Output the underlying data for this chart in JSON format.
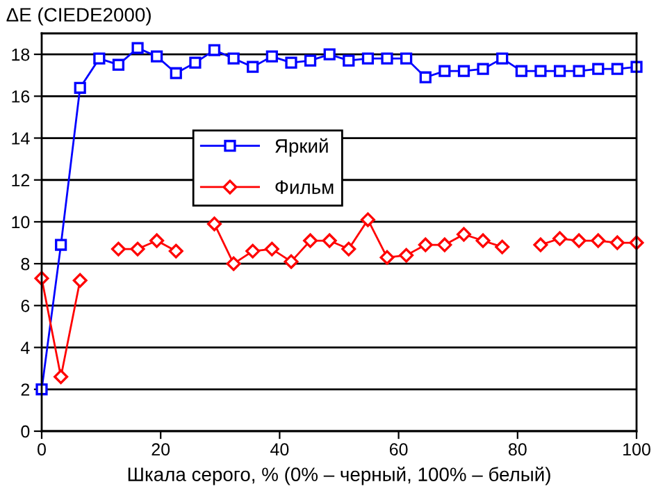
{
  "chart_data": {
    "type": "line",
    "ylabel": "ΔE (CIEDE2000)",
    "xlabel": "Шкала серого, % (0% – черный, 100% – белый)",
    "x": [
      0,
      3.23,
      6.45,
      9.68,
      12.9,
      16.13,
      19.35,
      22.58,
      25.81,
      29.03,
      32.26,
      35.48,
      38.71,
      41.94,
      45.16,
      48.39,
      51.61,
      54.84,
      58.06,
      61.29,
      64.52,
      67.74,
      70.97,
      74.19,
      77.42,
      80.65,
      83.87,
      87.1,
      90.32,
      93.55,
      96.77,
      100
    ],
    "series": [
      {
        "name": "Яркий",
        "color": "#0000ff",
        "marker": "square",
        "values": [
          2.0,
          8.9,
          16.4,
          17.8,
          17.5,
          18.3,
          17.9,
          17.1,
          17.6,
          18.2,
          17.8,
          17.4,
          17.9,
          17.6,
          17.7,
          18.0,
          17.7,
          17.8,
          17.8,
          17.8,
          16.9,
          17.2,
          17.2,
          17.3,
          17.8,
          17.2,
          17.2,
          17.2,
          17.2,
          17.3,
          17.3,
          17.4
        ]
      },
      {
        "name": "Фильм",
        "color": "#ff0000",
        "marker": "diamond",
        "values": [
          7.3,
          2.6,
          7.2,
          null,
          8.7,
          8.7,
          9.1,
          8.6,
          null,
          9.9,
          8.0,
          8.6,
          8.7,
          8.1,
          9.1,
          9.1,
          8.7,
          10.1,
          8.3,
          8.4,
          8.9,
          8.9,
          9.4,
          9.1,
          8.8,
          null,
          8.9,
          9.2,
          9.1,
          9.1,
          9.0,
          9.0
        ]
      }
    ],
    "xlim": [
      0,
      100
    ],
    "xticks": [
      0,
      20,
      40,
      60,
      80,
      100
    ],
    "ylim": [
      0,
      19
    ],
    "yticks": [
      0,
      2,
      4,
      6,
      8,
      10,
      12,
      14,
      16,
      18
    ],
    "grid": "y",
    "legend": "top",
    "line_style": "solid"
  }
}
